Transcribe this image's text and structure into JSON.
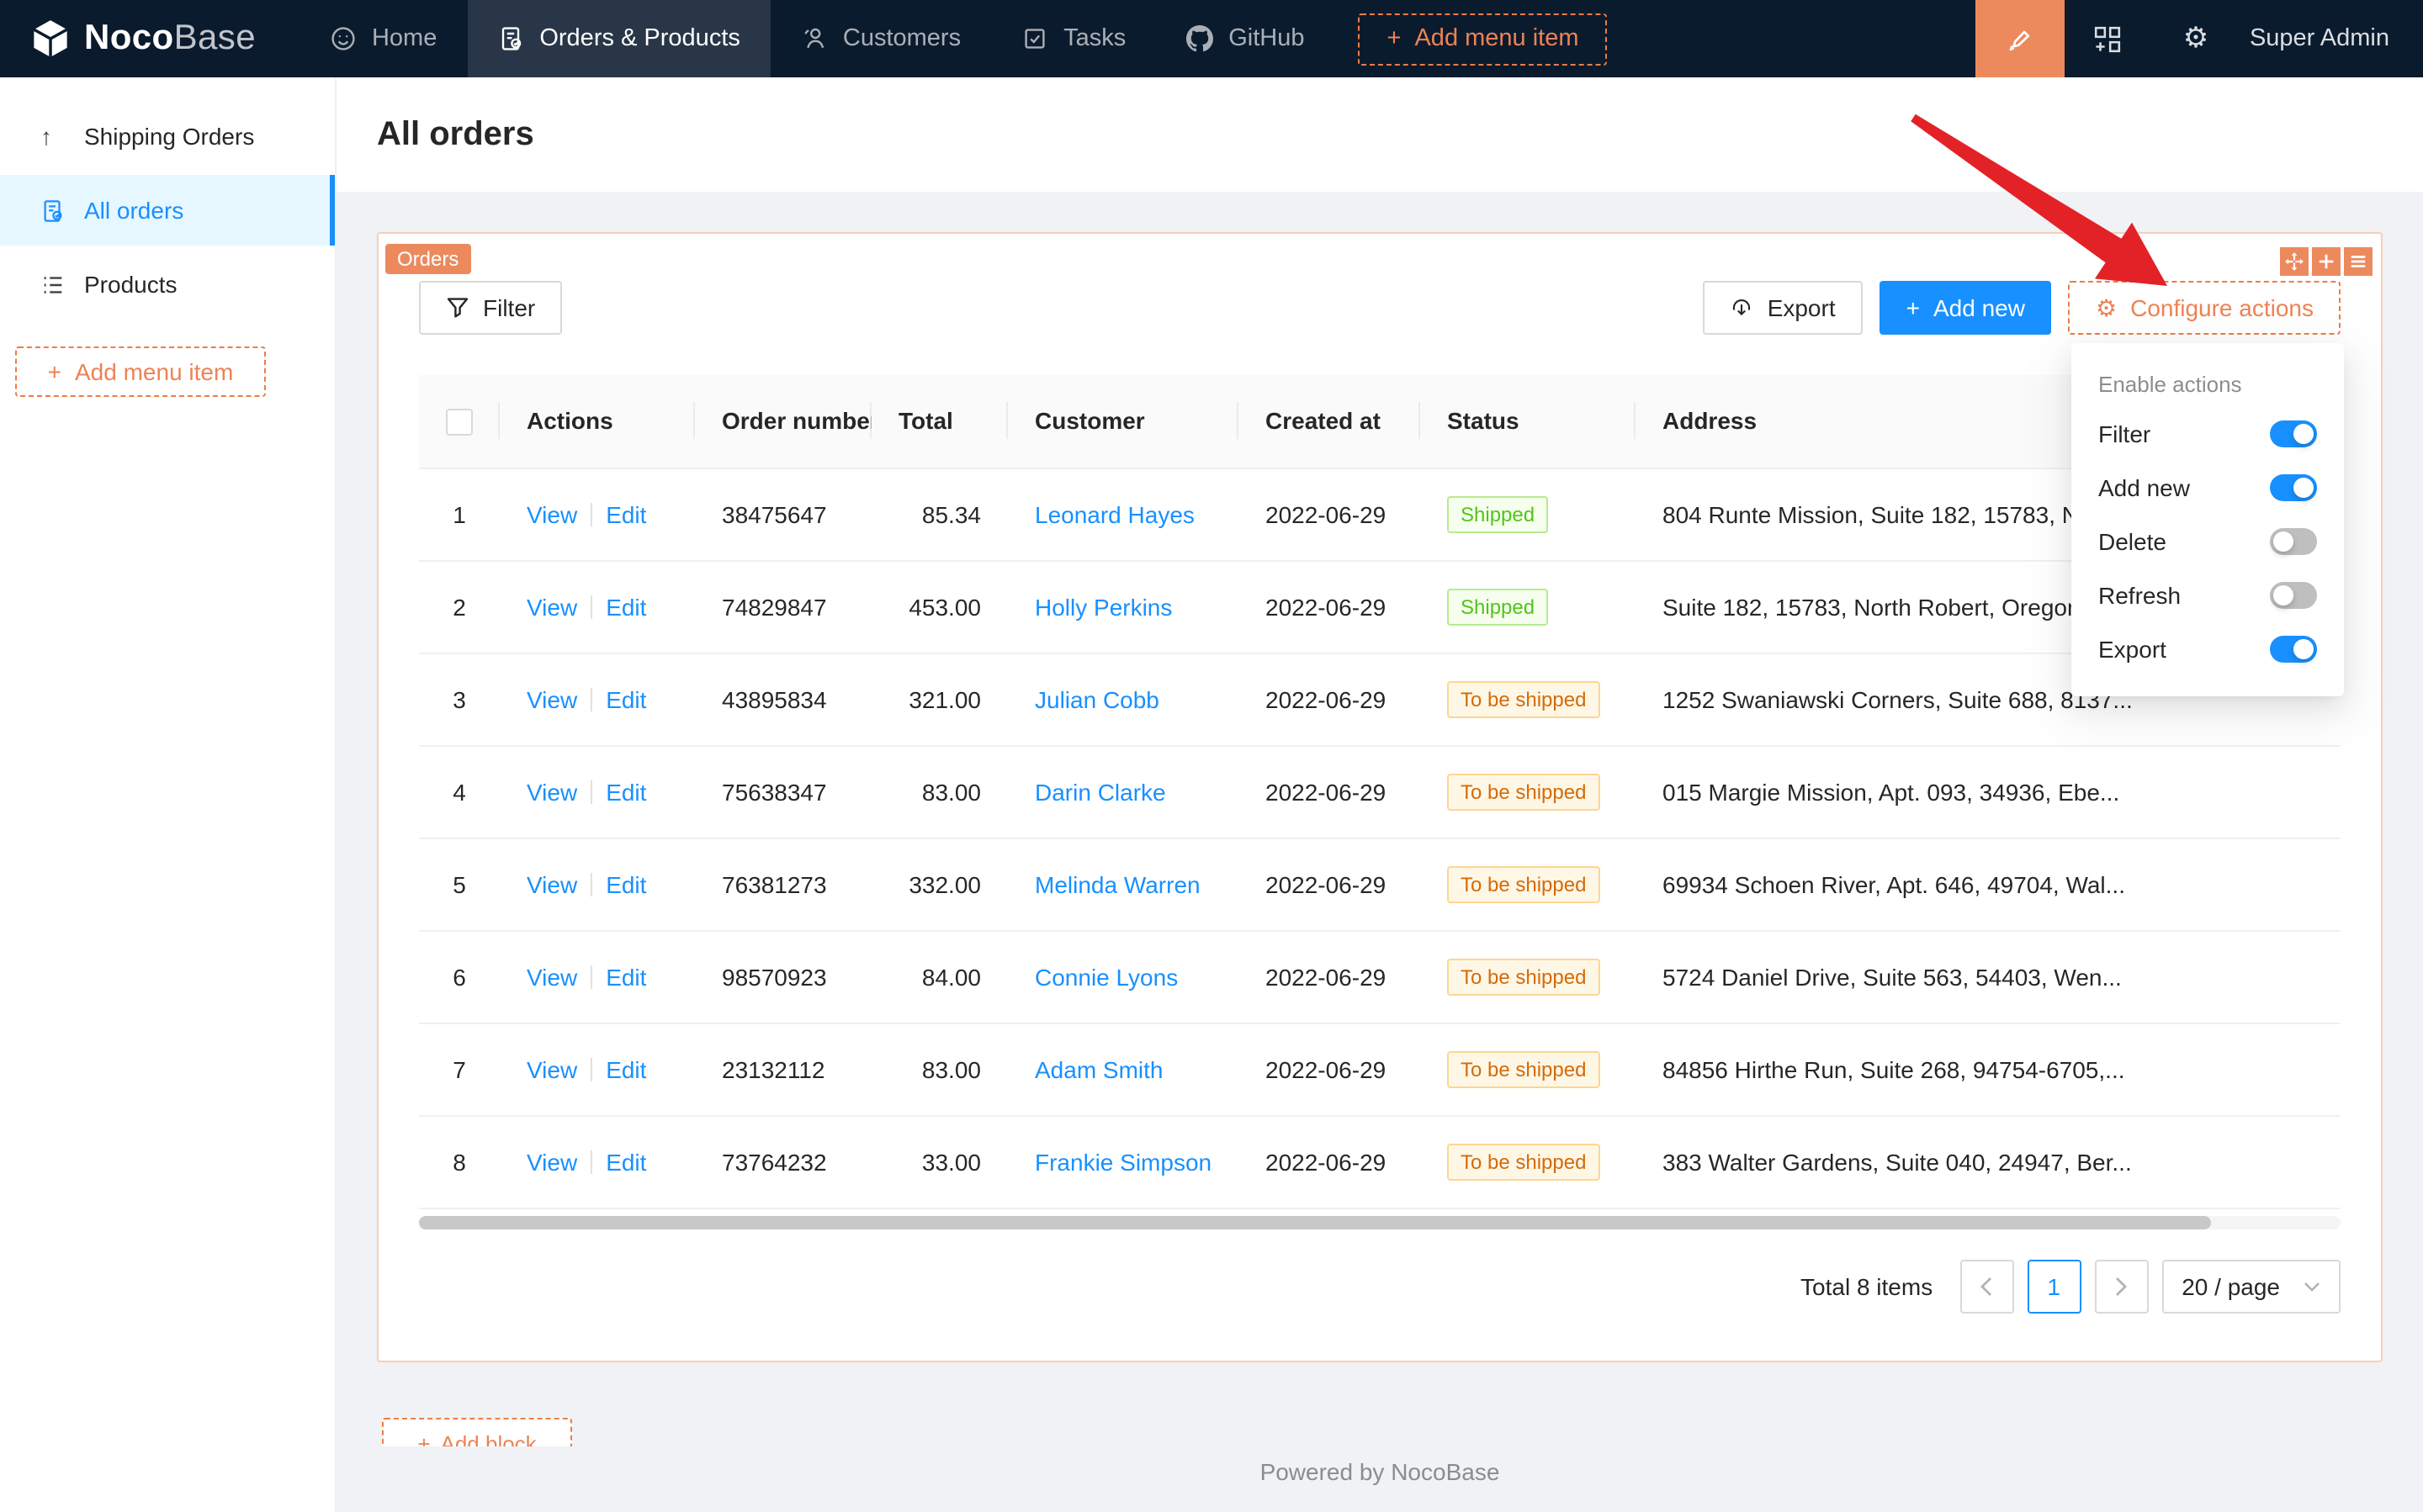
{
  "nav": {
    "brand_bold": "Noco",
    "brand_light": "Base",
    "items": [
      {
        "label": "Home",
        "active": false
      },
      {
        "label": "Orders & Products",
        "active": true
      },
      {
        "label": "Customers",
        "active": false
      },
      {
        "label": "Tasks",
        "active": false
      },
      {
        "label": "GitHub",
        "active": false
      }
    ],
    "add_label": "Add menu item",
    "user": "Super Admin"
  },
  "sidebar": {
    "items": [
      {
        "label": "Shipping Orders",
        "active": false
      },
      {
        "label": "All orders",
        "active": true
      },
      {
        "label": "Products",
        "active": false
      }
    ],
    "add_label": "Add menu item"
  },
  "page": {
    "title": "All orders"
  },
  "block": {
    "tag": "Orders",
    "filter_label": "Filter",
    "export_label": "Export",
    "add_new_label": "Add new",
    "configure_label": "Configure actions"
  },
  "dropdown": {
    "title": "Enable actions",
    "items": [
      {
        "label": "Filter",
        "on": true
      },
      {
        "label": "Add new",
        "on": true
      },
      {
        "label": "Delete",
        "on": false
      },
      {
        "label": "Refresh",
        "on": false
      },
      {
        "label": "Export",
        "on": true
      }
    ]
  },
  "table": {
    "columns": [
      "",
      "Actions",
      "Order number",
      "Total",
      "Customer",
      "Created at",
      "Status",
      "Address"
    ],
    "view_label": "View",
    "edit_label": "Edit",
    "rows": [
      {
        "index": "1",
        "order_number": "38475647",
        "total": "85.34",
        "customer": "Leonard Hayes",
        "created_at": "2022-06-29",
        "status": "Shipped",
        "status_type": "success",
        "address": "804 Runte Mission, Suite 182, 15783, N"
      },
      {
        "index": "2",
        "order_number": "74829847",
        "total": "453.00",
        "customer": "Holly Perkins",
        "created_at": "2022-06-29",
        "status": "Shipped",
        "status_type": "success",
        "address": "Suite 182, 15783, North Robert, Oregon"
      },
      {
        "index": "3",
        "order_number": "43895834",
        "total": "321.00",
        "customer": "Julian Cobb",
        "created_at": "2022-06-29",
        "status": "To be shipped",
        "status_type": "warning",
        "address": "1252 Swaniawski Corners, Suite 688, 8137..."
      },
      {
        "index": "4",
        "order_number": "75638347",
        "total": "83.00",
        "customer": "Darin Clarke",
        "created_at": "2022-06-29",
        "status": "To be shipped",
        "status_type": "warning",
        "address": "015 Margie Mission, Apt. 093, 34936, Ebe..."
      },
      {
        "index": "5",
        "order_number": "76381273",
        "total": "332.00",
        "customer": "Melinda Warren",
        "created_at": "2022-06-29",
        "status": "To be shipped",
        "status_type": "warning",
        "address": "69934 Schoen River, Apt. 646, 49704, Wal..."
      },
      {
        "index": "6",
        "order_number": "98570923",
        "total": "84.00",
        "customer": "Connie Lyons",
        "created_at": "2022-06-29",
        "status": "To be shipped",
        "status_type": "warning",
        "address": "5724 Daniel Drive, Suite 563, 54403, Wen..."
      },
      {
        "index": "7",
        "order_number": "23132112",
        "total": "83.00",
        "customer": "Adam Smith",
        "created_at": "2022-06-29",
        "status": "To be shipped",
        "status_type": "warning",
        "address": "84856 Hirthe Run, Suite 268, 94754-6705,..."
      },
      {
        "index": "8",
        "order_number": "73764232",
        "total": "33.00",
        "customer": "Frankie Simpson",
        "created_at": "2022-06-29",
        "status": "To be shipped",
        "status_type": "warning",
        "address": "383 Walter Gardens, Suite 040, 24947, Ber..."
      }
    ]
  },
  "pagination": {
    "total_text": "Total 8 items",
    "current_page": "1",
    "page_size": "20 / page"
  },
  "add_block_label": "Add block",
  "footer_text": "Powered by NocoBase",
  "colors": {
    "accent_orange": "#ec8a5e",
    "primary_blue": "#1890ff",
    "nav_bg": "#0b1b2e",
    "status_shipped_text": "#52c41a",
    "status_pending_text": "#d46b08",
    "annotation_arrow_red": "#e32227"
  }
}
